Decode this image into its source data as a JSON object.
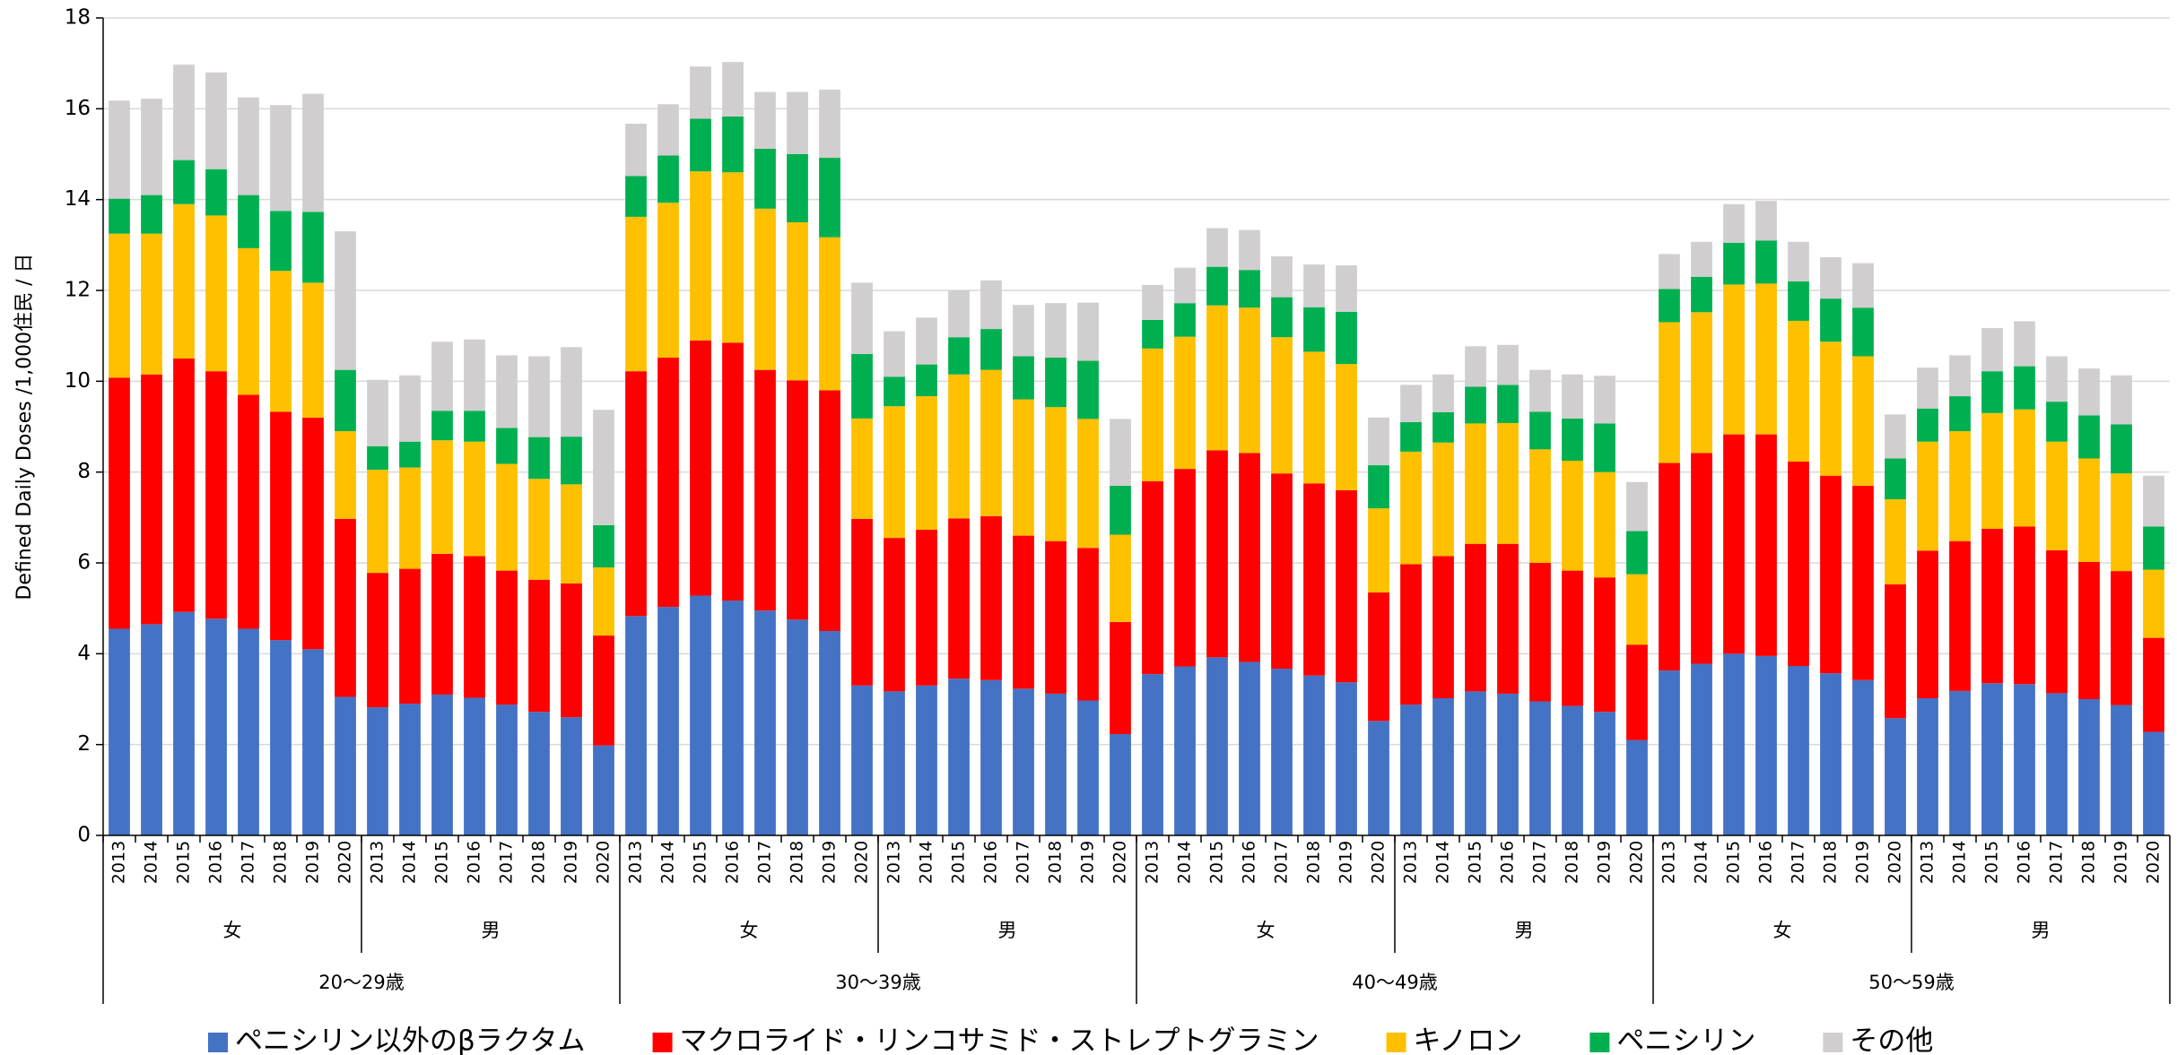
{
  "chart_data": {
    "type": "stacked_bar",
    "y_label": "Defined Daily Doses /1,000住民 / 日",
    "ylim": [
      0,
      18
    ],
    "yticks": [
      0,
      2,
      4,
      6,
      8,
      10,
      12,
      14,
      16,
      18
    ],
    "grid": true,
    "legend": "bottom",
    "categories": [
      "2013",
      "2014",
      "2015",
      "2016",
      "2017",
      "2018",
      "2019",
      "2020",
      "2013",
      "2014",
      "2015",
      "2016",
      "2017",
      "2018",
      "2019",
      "2020",
      "2013",
      "2014",
      "2015",
      "2016",
      "2017",
      "2018",
      "2019",
      "2020",
      "2013",
      "2014",
      "2015",
      "2016",
      "2017",
      "2018",
      "2019",
      "2020",
      "2013",
      "2014",
      "2015",
      "2016",
      "2017",
      "2018",
      "2019",
      "2020",
      "2013",
      "2014",
      "2015",
      "2016",
      "2017",
      "2018",
      "2019",
      "2020",
      "2013",
      "2014",
      "2015",
      "2016",
      "2017",
      "2018",
      "2019",
      "2020",
      "2013",
      "2014",
      "2015",
      "2016",
      "2017",
      "2018",
      "2019",
      "2020"
    ],
    "sex_groups": [
      "女",
      "男",
      "女",
      "男",
      "女",
      "男",
      "女",
      "男"
    ],
    "age_groups": [
      "20〜29歳",
      "30〜39歳",
      "40〜49歳",
      "50〜59歳"
    ],
    "series": [
      {
        "name": "ペニシリン以外のβラクタム",
        "color": "#4472c4",
        "values": [
          4.55,
          4.65,
          4.92,
          4.77,
          4.55,
          4.3,
          4.1,
          3.05,
          2.82,
          2.9,
          3.1,
          3.03,
          2.88,
          2.72,
          2.6,
          1.98,
          4.83,
          5.03,
          5.28,
          5.17,
          4.95,
          4.75,
          4.5,
          3.3,
          3.17,
          3.3,
          3.45,
          3.42,
          3.23,
          3.12,
          2.97,
          2.23,
          3.55,
          3.72,
          3.92,
          3.82,
          3.67,
          3.52,
          3.37,
          2.52,
          2.88,
          3.02,
          3.17,
          3.12,
          2.95,
          2.85,
          2.72,
          2.1,
          3.63,
          3.78,
          4.0,
          3.95,
          3.73,
          3.57,
          3.42,
          2.58,
          3.02,
          3.18,
          3.35,
          3.33,
          3.13,
          3.0,
          2.87,
          2.28
        ]
      },
      {
        "name": "マクロライド・リンコサミド・ストレプトグラミン",
        "color": "#ff0000",
        "values": [
          5.53,
          5.5,
          5.58,
          5.45,
          5.15,
          5.03,
          5.1,
          3.92,
          2.96,
          2.97,
          3.1,
          3.12,
          2.95,
          2.91,
          2.95,
          2.42,
          5.39,
          5.49,
          5.62,
          5.68,
          5.3,
          5.27,
          5.3,
          3.67,
          3.38,
          3.43,
          3.53,
          3.61,
          3.37,
          3.36,
          3.36,
          2.47,
          4.25,
          4.35,
          4.56,
          4.6,
          4.3,
          4.23,
          4.23,
          2.83,
          3.09,
          3.13,
          3.25,
          3.3,
          3.05,
          2.98,
          2.96,
          2.1,
          4.57,
          4.64,
          4.83,
          4.88,
          4.5,
          4.35,
          4.28,
          2.95,
          3.25,
          3.3,
          3.4,
          3.47,
          3.15,
          3.02,
          2.95,
          2.07
        ]
      },
      {
        "name": "キノロン",
        "color": "#ffc000",
        "values": [
          3.17,
          3.1,
          3.4,
          3.43,
          3.23,
          3.1,
          2.97,
          1.93,
          2.27,
          2.23,
          2.5,
          2.52,
          2.35,
          2.22,
          2.18,
          1.5,
          3.4,
          3.41,
          3.72,
          3.75,
          3.55,
          3.48,
          3.37,
          2.21,
          2.9,
          2.94,
          3.17,
          3.22,
          3.0,
          2.95,
          2.84,
          1.92,
          2.92,
          2.91,
          3.19,
          3.2,
          3.0,
          2.9,
          2.78,
          1.85,
          2.48,
          2.5,
          2.65,
          2.66,
          2.5,
          2.42,
          2.32,
          1.55,
          3.1,
          3.1,
          3.3,
          3.32,
          3.1,
          2.95,
          2.85,
          1.87,
          2.4,
          2.42,
          2.55,
          2.58,
          2.39,
          2.28,
          2.15,
          1.5
        ]
      },
      {
        "name": "ペニシリン",
        "color": "#00b050",
        "values": [
          0.77,
          0.85,
          0.97,
          1.02,
          1.17,
          1.32,
          1.56,
          1.35,
          0.52,
          0.57,
          0.65,
          0.68,
          0.79,
          0.92,
          1.05,
          0.93,
          0.9,
          1.04,
          1.16,
          1.23,
          1.32,
          1.5,
          1.75,
          1.42,
          0.65,
          0.7,
          0.82,
          0.9,
          0.95,
          1.09,
          1.28,
          1.08,
          0.63,
          0.74,
          0.85,
          0.83,
          0.88,
          0.98,
          1.15,
          0.95,
          0.65,
          0.67,
          0.81,
          0.84,
          0.83,
          0.93,
          1.07,
          0.95,
          0.73,
          0.78,
          0.92,
          0.95,
          0.87,
          0.95,
          1.07,
          0.9,
          0.73,
          0.77,
          0.92,
          0.95,
          0.88,
          0.95,
          1.08,
          0.95
        ]
      },
      {
        "name": "その他",
        "color": "#d0cece",
        "values": [
          2.16,
          2.12,
          2.1,
          2.13,
          2.15,
          2.33,
          2.6,
          3.05,
          1.46,
          1.46,
          1.52,
          1.57,
          1.6,
          1.78,
          1.97,
          2.54,
          1.15,
          1.13,
          1.15,
          1.2,
          1.25,
          1.37,
          1.5,
          1.57,
          1.0,
          1.03,
          1.03,
          1.07,
          1.13,
          1.2,
          1.28,
          1.47,
          0.77,
          0.78,
          0.85,
          0.88,
          0.9,
          0.94,
          1.02,
          1.05,
          0.82,
          0.83,
          0.89,
          0.88,
          0.92,
          0.97,
          1.05,
          1.08,
          0.77,
          0.77,
          0.85,
          0.87,
          0.87,
          0.91,
          0.98,
          0.97,
          0.9,
          0.9,
          0.95,
          0.99,
          1.0,
          1.03,
          1.08,
          1.12
        ]
      }
    ]
  }
}
